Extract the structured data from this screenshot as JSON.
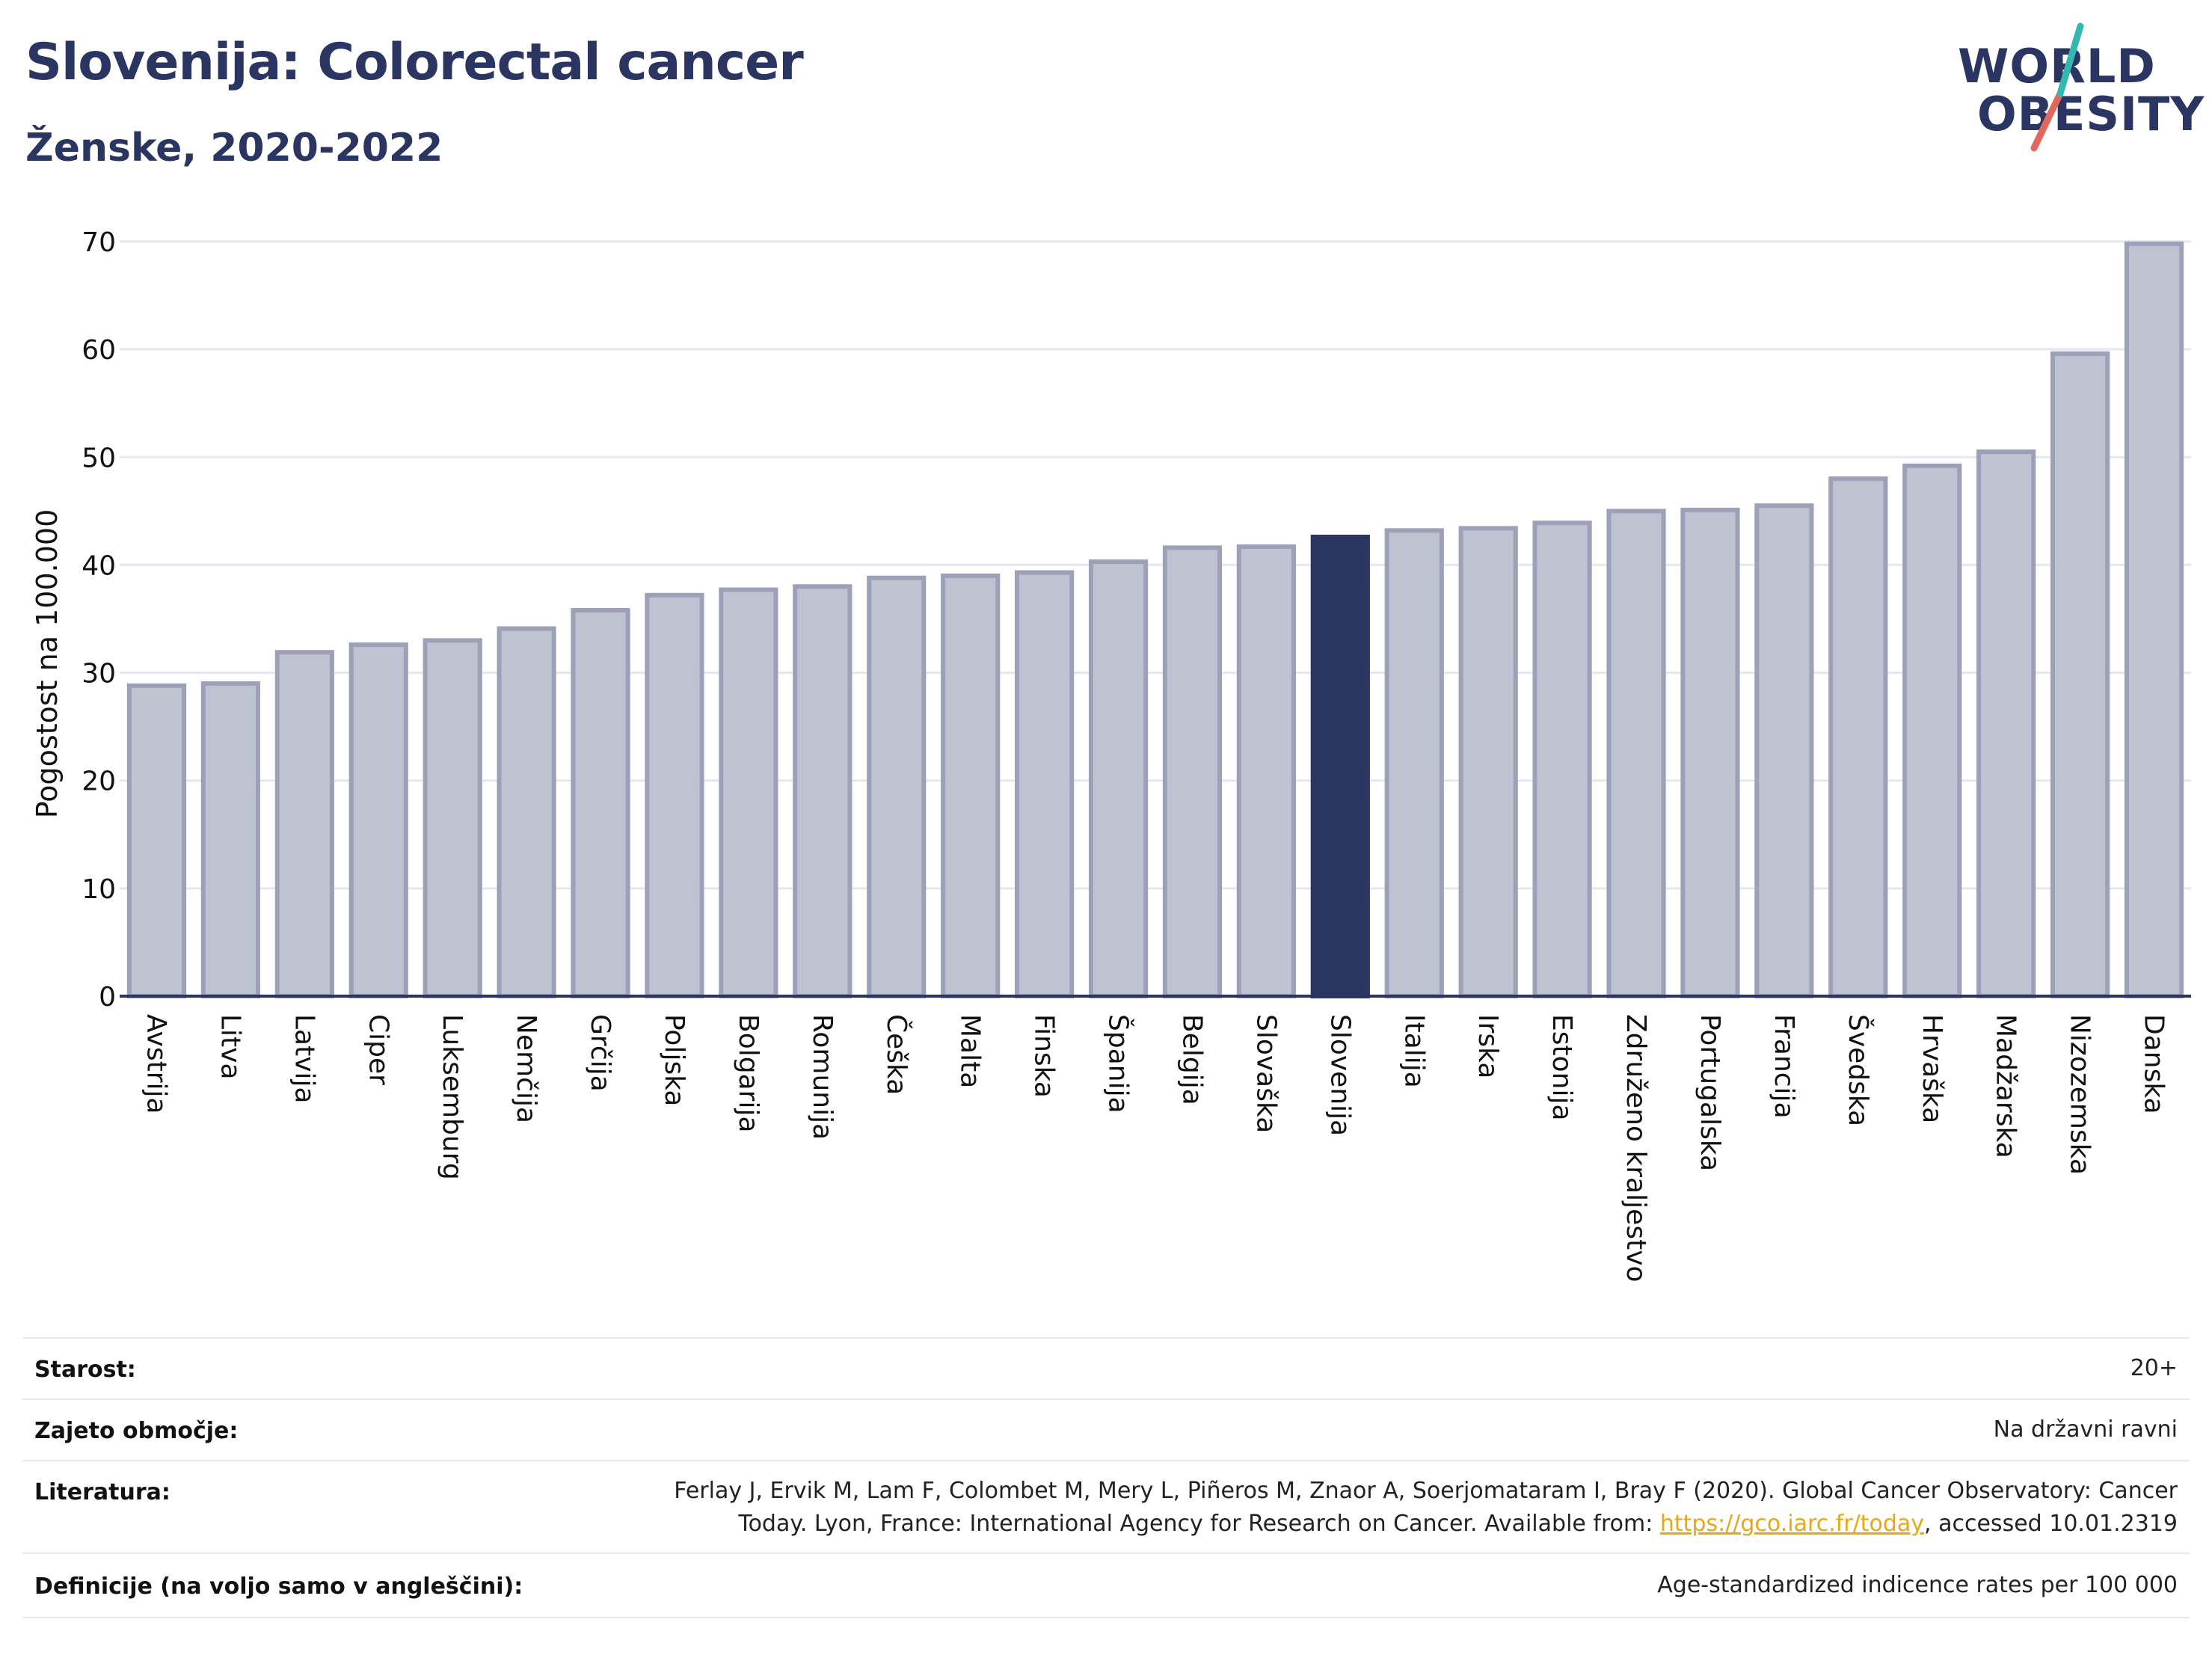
{
  "header": {
    "title": "Slovenija: Colorectal cancer",
    "subtitle": "Ženske, 2020-2022"
  },
  "logo": {
    "line1": "WORLD",
    "line2": "OBESITY"
  },
  "colors": {
    "bar": "#bfc2d0",
    "bar_border": "#9ca1b9",
    "highlight": "#2a3561",
    "grid": "#e6e7ee",
    "axis": "#2a3561",
    "logo_teal": "#34b7b0",
    "logo_red": "#e2685f"
  },
  "chart_data": {
    "type": "bar",
    "ylabel": "Pogostost na 100.000",
    "ylim": [
      0,
      70
    ],
    "yticks": [
      0,
      10,
      20,
      30,
      40,
      50,
      60,
      70
    ],
    "grid": true,
    "highlight": "Slovenija",
    "categories": [
      "Avstrija",
      "Litva",
      "Latvija",
      "Ciper",
      "Luksemburg",
      "Nemčija",
      "Grčija",
      "Poljska",
      "Bolgarija",
      "Romunija",
      "Češka",
      "Malta",
      "Finska",
      "Španija",
      "Belgija",
      "Slovaška",
      "Slovenija",
      "Italija",
      "Irska",
      "Estonija",
      "Združeno kraljestvo",
      "Portugalska",
      "Francija",
      "Švedska",
      "Hrvaška",
      "Madžarska",
      "Nizozemska",
      "Danska"
    ],
    "values": [
      28.8,
      29.0,
      31.9,
      32.6,
      33.0,
      34.1,
      35.8,
      37.2,
      37.7,
      38.0,
      38.8,
      39.0,
      39.3,
      40.3,
      41.6,
      41.7,
      42.6,
      43.2,
      43.4,
      43.9,
      45.0,
      45.1,
      45.5,
      48.0,
      49.2,
      50.5,
      59.6,
      69.8
    ]
  },
  "info": {
    "age_label": "Starost:",
    "age_value": "20+",
    "area_label": "Zajeto območje:",
    "area_value": "Na državni ravni",
    "refs_label": "Literatura:",
    "refs_line1": "Ferlay J, Ervik M, Lam F, Colombet M, Mery L, Piñeros M, Znaor A, Soerjomataram I, Bray F (2020). Global Cancer Observatory: Cancer",
    "refs_line2_pre": "Today. Lyon, France: International Agency for Research on Cancer. Available from: ",
    "refs_link": "https://gco.iarc.fr/today",
    "refs_line2_post": ", accessed 10.01.2319",
    "defs_label": "Definicije (na voljo samo v angleščini):",
    "defs_value": "Age-standardized indicence rates per 100 000"
  }
}
